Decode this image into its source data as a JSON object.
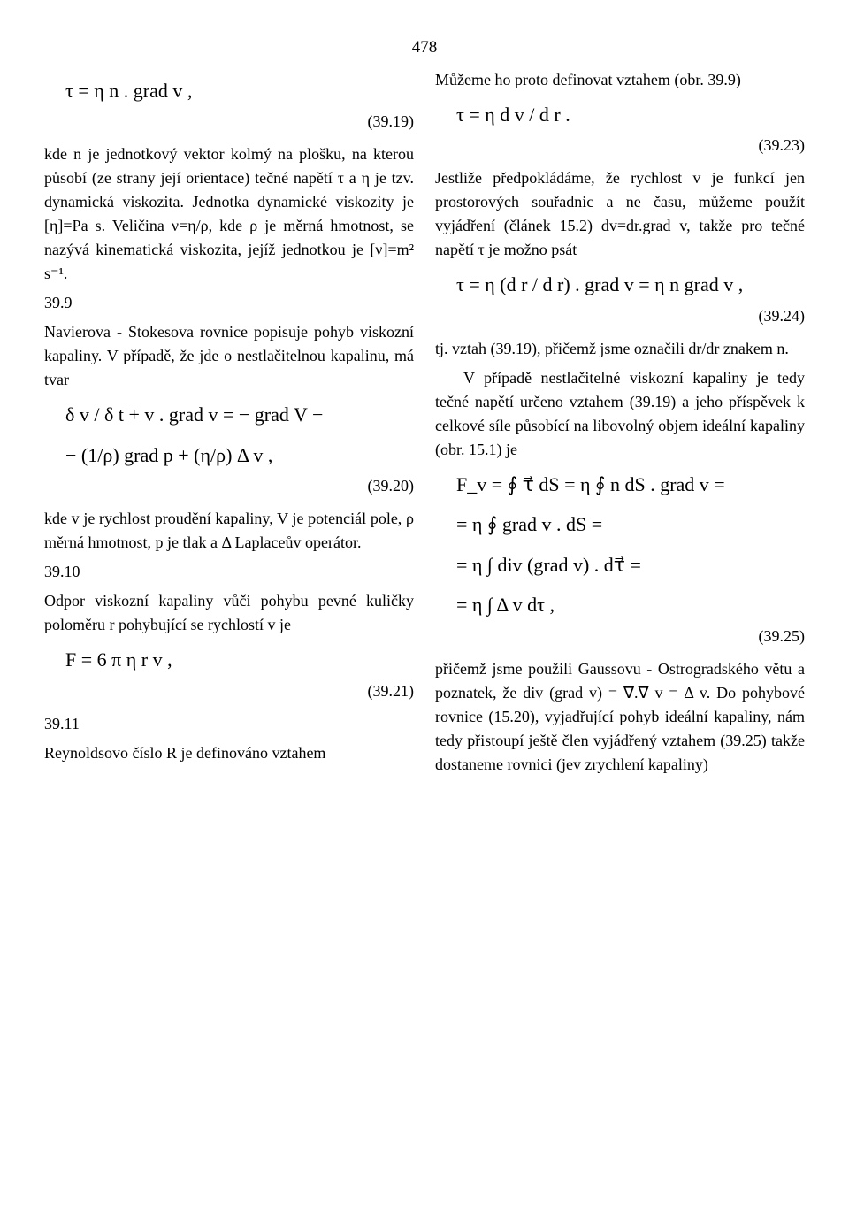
{
  "page_number": "478",
  "left": {
    "eq_39_19": "τ = η n . grad v ,",
    "num_39_19": "(39.19)",
    "p1": "kde n je jednotkový vektor kolmý na plošku, na kterou působí (ze strany její orientace) tečné napětí τ a η je tzv. dynamická viskozita. Jednotka dynamické viskozity je [η]=Pa s. Veličina ν=η/ρ, kde ρ je měrná hmotnost, se nazývá kinematická viskozita, jejíž jednotkou je [ν]=m² s⁻¹.",
    "sec_39_9_num": "39.9",
    "sec_39_9_body": "Navierova - Stokesova rovnice popisuje pohyb viskozní kapaliny. V případě, že jde o nestlačitelnou kapalinu, má tvar",
    "eq_39_20_a": "δ v / δ t  +  v . grad v  =  − grad V  −",
    "eq_39_20_b": "  −  (1/ρ) grad p  +  (η/ρ) Δ v ,",
    "num_39_20": "(39.20)",
    "p2": "kde v je rychlost proudění kapaliny, V je potenciál pole, ρ měrná hmotnost, p je tlak a Δ Laplaceův operátor.",
    "sec_39_10_num": "39.10",
    "sec_39_10_body": "Odpor viskozní kapaliny vůči pohybu pevné kuličky poloměru r pohybující se rychlostí v je",
    "eq_39_21": "F = 6 π η r v ,",
    "num_39_21": "(39.21)",
    "sec_39_11_num": "39.11",
    "sec_39_11_body": "Reynoldsovo číslo R je definováno vztahem"
  },
  "right": {
    "p1": "Můžeme ho proto definovat vztahem (obr. 39.9)",
    "eq_39_23": "τ = η  d v / d r .",
    "num_39_23": "(39.23)",
    "p2": "Jestliže předpokládáme, že rychlost v je funkcí jen prostorových souřadnic a ne času, můžeme použít vyjádření (článek 15.2) dv=dr.grad v, takže pro tečné napětí τ je možno psát",
    "eq_39_24": "τ = η  (d r / d r) . grad v = η n grad v ,",
    "num_39_24": "(39.24)",
    "p3": "tj. vztah (39.19), přičemž jsme označili dr/dr znakem n.",
    "p4": "V případě nestlačitelné viskozní kapaliny je tedy tečné napětí určeno vztahem (39.19) a jeho příspěvek k celkové síle působící na libovolný objem ideální kapaliny (obr. 15.1) je",
    "eq_39_25_a": "F_v = ∮ τ⃗ dS = η ∮ n dS . grad v =",
    "eq_39_25_b": "       = η ∮ grad v . dS =",
    "eq_39_25_c": "       = η ∫ div (grad v) . dτ⃗ =",
    "eq_39_25_d": "       = η ∫ Δ v dτ ,",
    "num_39_25": "(39.25)",
    "p5": "přičemž jsme použili Gaussovu - Ostrogradského větu a poznatek, že div (grad v) = ∇.∇ v = Δ v. Do pohybové rovnice (15.20), vyjadřující pohyb ideální kapaliny, nám tedy přistoupí ještě člen vyjádřený vztahem (39.25) takže dostaneme rovnici (jev zrychlení kapaliny)"
  }
}
